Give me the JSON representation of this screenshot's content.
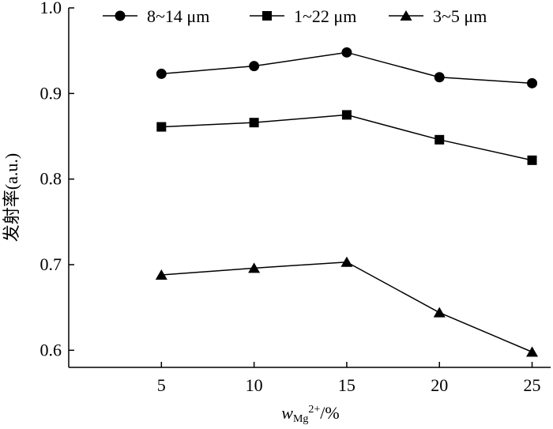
{
  "chart_data": {
    "type": "line",
    "title": "",
    "x": [
      5,
      10,
      15,
      20,
      25
    ],
    "x_tick_labels": [
      "5",
      "10",
      "15",
      "20",
      "25"
    ],
    "y_tick_labels": [
      "0.6",
      "0.7",
      "0.8",
      "0.9",
      "1.0"
    ],
    "xlim": [
      0,
      26
    ],
    "ylim": [
      0.58,
      1.0
    ],
    "xlabel": {
      "var": "w",
      "sub": "Mg",
      "sup": "2+",
      "unit": "/%"
    },
    "ylabel": "发射率(a.u.)",
    "grid": false,
    "legend_position": "top",
    "series": [
      {
        "name": "8~14 μm",
        "marker": "circle",
        "values": [
          0.923,
          0.932,
          0.948,
          0.919,
          0.912
        ]
      },
      {
        "name": "1~22 μm",
        "marker": "square",
        "values": [
          0.861,
          0.866,
          0.875,
          0.846,
          0.822
        ]
      },
      {
        "name": "3~5 μm",
        "marker": "triangle",
        "values": [
          0.688,
          0.696,
          0.703,
          0.644,
          0.598
        ]
      }
    ]
  }
}
